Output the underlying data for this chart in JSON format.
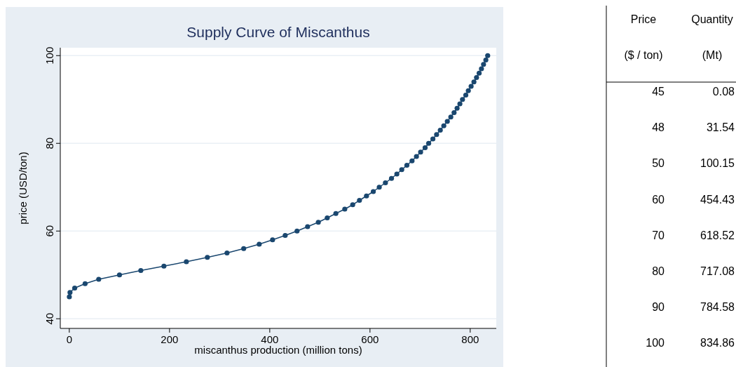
{
  "chart_data": {
    "type": "line",
    "title": "Supply Curve of Miscanthus",
    "xlabel": "miscanthus production (million tons)",
    "ylabel": "price (USD/ton)",
    "xlim": [
      -18,
      852
    ],
    "ylim": [
      37.8,
      101.8
    ],
    "xticks": [
      0,
      200,
      400,
      600,
      800
    ],
    "yticks": [
      40,
      60,
      80,
      100
    ],
    "grid": "y",
    "marker": "circle",
    "line_style": "solid",
    "series": [
      {
        "color": "#1a476f",
        "x": [
          0.08,
          1.4,
          10.8,
          31.54,
          58.7,
          100.15,
          142.7,
          188.8,
          233.6,
          275.5,
          314.7,
          348,
          379,
          405.6,
          430.8,
          454.43,
          475.5,
          496.9,
          514.7,
          531.9,
          549.7,
          565.5,
          579,
          593,
          606.6,
          618.52,
          630.8,
          642.9,
          653.6,
          663.4,
          673.6,
          683.9,
          692.7,
          701,
          710,
          717.08,
          725.5,
          732.9,
          740.3,
          747.3,
          754.3,
          761.3,
          767.8,
          773.8,
          779.4,
          784.58,
          791.2,
          796.2,
          801.8,
          807.4,
          812.6,
          817.8,
          822.4,
          826.6,
          831.2,
          834.86
        ],
        "values": [
          45,
          46,
          47,
          48,
          49,
          50,
          51,
          52,
          53,
          54,
          55,
          56,
          57,
          58,
          59,
          60,
          61,
          62,
          63,
          64,
          65,
          66,
          67,
          68,
          69,
          70,
          71,
          72,
          73,
          74,
          75,
          76,
          77,
          78,
          79,
          80,
          81,
          82,
          83,
          84,
          85,
          86,
          87,
          88,
          89,
          90,
          91,
          92,
          93,
          94,
          95,
          96,
          97,
          98,
          99,
          100
        ]
      }
    ],
    "annotations": [
      "Price\n($ / ton)",
      "Quantity\n(Mt)",
      "45",
      "0.08",
      "48",
      "31.54",
      "50",
      "100.15",
      "60",
      "454.43",
      "70",
      "618.52",
      "80",
      "717.08",
      "90",
      "784.58",
      "100",
      "834.86"
    ]
  }
}
